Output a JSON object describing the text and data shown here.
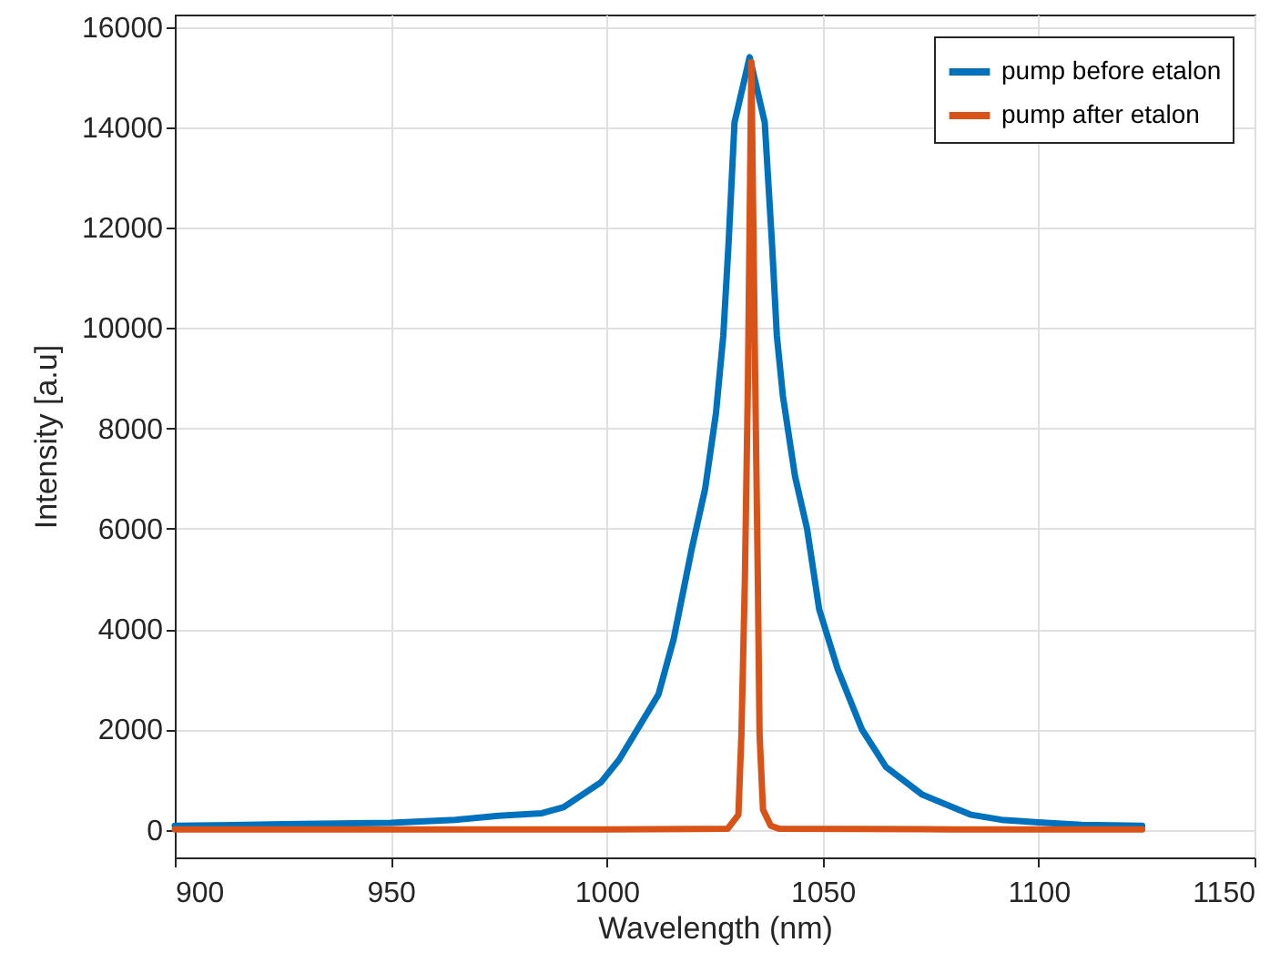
{
  "chart_data": {
    "type": "line",
    "xlabel": "Wavelength (nm)",
    "ylabel": "Intensity [a.u]",
    "xlim": [
      900,
      1150
    ],
    "xticks": [
      900,
      950,
      1000,
      1050,
      1100,
      1150
    ],
    "ylim": [
      -550,
      16250
    ],
    "yticks": [
      0,
      2000,
      4000,
      6000,
      8000,
      10000,
      12000,
      14000,
      16000
    ],
    "grid": true,
    "legend": "top right",
    "marker": "none",
    "line_style": "solid",
    "series": [
      {
        "name": "pump before etalon",
        "color": "#0072bd",
        "x": [
          900,
          925,
          950,
          965,
          975,
          985,
          990,
          998.7,
          1002.9,
          1007.1,
          1012.0,
          1015.5,
          1019.7,
          1022.8,
          1025.3,
          1027.0,
          1028.2,
          1029.6,
          1033.1,
          1036.6,
          1038.3,
          1039.4,
          1040.8,
          1043.6,
          1046.4,
          1049.2,
          1053.5,
          1059.1,
          1064.7,
          1073.1,
          1084.4,
          1091.4,
          1100,
          1110,
          1124
        ],
        "values": [
          80,
          110,
          140,
          200,
          280,
          330,
          450,
          950,
          1400,
          2000,
          2700,
          3800,
          5600,
          6800,
          8300,
          9850,
          11650,
          14100,
          15400,
          14100,
          11650,
          9850,
          8650,
          7050,
          6000,
          4400,
          3200,
          2000,
          1250,
          700,
          300,
          200,
          150,
          100,
          80
        ]
      },
      {
        "name": "pump after etalon",
        "color": "#d95319",
        "x": [
          900,
          950,
          1000,
          1028,
          1030.5,
          1031.2,
          1032.0,
          1032.7,
          1033.5,
          1034.4,
          1035.0,
          1035.4,
          1036.2,
          1038,
          1040,
          1080,
          1124
        ],
        "values": [
          10,
          10,
          10,
          20,
          300,
          1900,
          5000,
          8900,
          15300,
          8900,
          5000,
          1900,
          400,
          80,
          20,
          10,
          10
        ]
      }
    ]
  }
}
